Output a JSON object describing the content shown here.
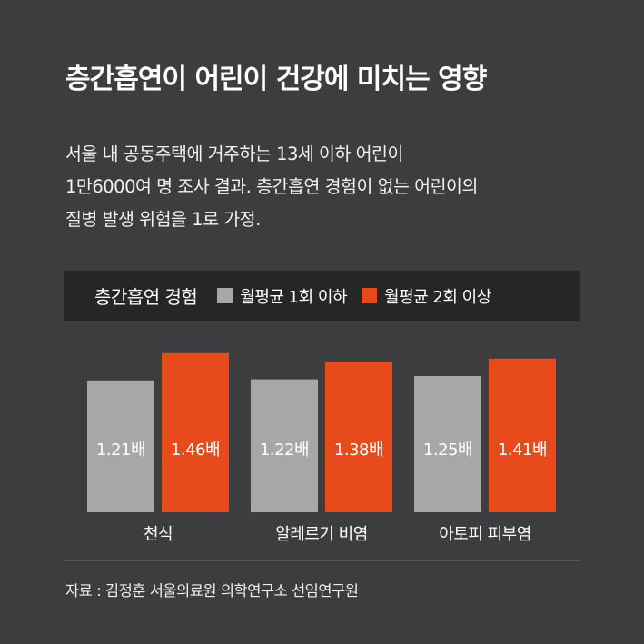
{
  "title": "층간흡연이 어린이 건강에 미치는 영향",
  "description": [
    "서울 내 공동주택에 거주하는 13세 이하 어린이",
    "1만6000여 명 조사 결과. 층간흡연 경험이 없는 어린이의",
    "질병 발생 위험을 1로 가정."
  ],
  "legend_title": "층간흡연 경험",
  "source": "자료 : 김정훈 서울의료원 의학연구소 선임연구원",
  "colors": {
    "background": "#3d3d3f",
    "legend_bg": "#262628",
    "gray": "#a7a7a7",
    "orange": "#e84b1b"
  },
  "chart_data": {
    "type": "bar",
    "categories": [
      "천식",
      "알레르기 비염",
      "아토피 피부염"
    ],
    "series": [
      {
        "name": "월평균 1회 이하",
        "values": [
          1.21,
          1.22,
          1.25
        ],
        "labels": [
          "1.21배",
          "1.22배",
          "1.25배"
        ],
        "color": "#a7a7a7"
      },
      {
        "name": "월평균 2회 이상",
        "values": [
          1.46,
          1.38,
          1.41
        ],
        "labels": [
          "1.46배",
          "1.38배",
          "1.41배"
        ],
        "color": "#e84b1b"
      }
    ],
    "legend": "top",
    "grid": false,
    "ylim": [
      0,
      1.5
    ]
  }
}
